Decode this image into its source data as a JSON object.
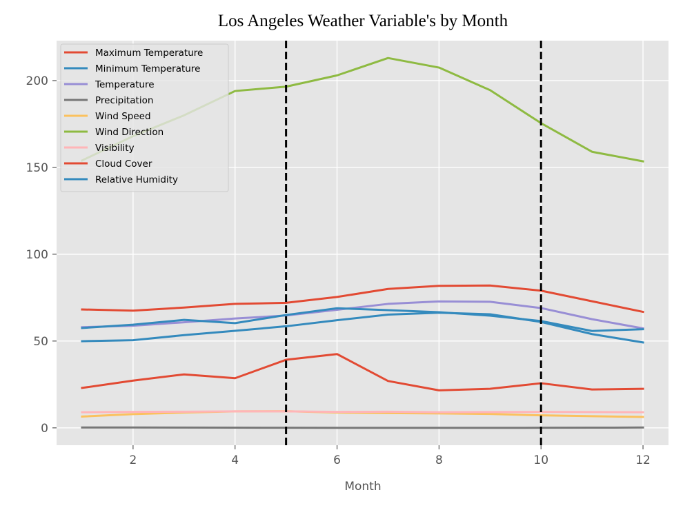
{
  "chart_data": {
    "type": "line",
    "title": "Los Angeles Weather Variable's by Month",
    "xlabel": "Month",
    "ylabel": "",
    "xlim": [
      0.5,
      12.5
    ],
    "ylim": [
      -10,
      223
    ],
    "xticks": [
      2,
      4,
      6,
      8,
      10,
      12
    ],
    "yticks": [
      0,
      50,
      100,
      150,
      200
    ],
    "grid": true,
    "legend_position": "top-left",
    "vlines": [
      5,
      10
    ],
    "x": [
      1,
      2,
      3,
      4,
      5,
      6,
      7,
      8,
      9,
      10,
      11,
      12
    ],
    "series": [
      {
        "name": "Maximum Temperature",
        "color": "#E24A33",
        "values": [
          68.2,
          67.5,
          69.3,
          71.4,
          72.0,
          75.4,
          80.0,
          81.8,
          82.0,
          79.0,
          72.9,
          66.8
        ]
      },
      {
        "name": "Minimum Temperature",
        "color": "#348ABD",
        "values": [
          49.9,
          50.5,
          53.4,
          55.9,
          58.5,
          62.0,
          65.2,
          66.3,
          65.4,
          61.0,
          54.0,
          49.2
        ]
      },
      {
        "name": "Temperature",
        "color": "#988ED5",
        "values": [
          58.0,
          58.8,
          60.8,
          63.0,
          64.7,
          68.0,
          71.4,
          72.8,
          72.6,
          69.0,
          62.6,
          57.3
        ]
      },
      {
        "name": "Precipitation",
        "color": "#777777",
        "values": [
          0.2,
          0.2,
          0.15,
          0.1,
          0.05,
          0.02,
          0.01,
          0.01,
          0.03,
          0.05,
          0.1,
          0.2
        ]
      },
      {
        "name": "Wind Speed",
        "color": "#FBC15E",
        "values": [
          6.5,
          7.9,
          8.8,
          9.5,
          9.6,
          8.8,
          8.5,
          8.3,
          8.0,
          7.2,
          6.7,
          6.3
        ]
      },
      {
        "name": "Wind Direction",
        "color": "#8EBA42",
        "values": [
          154.0,
          168.0,
          180.0,
          194.0,
          196.5,
          203.0,
          213.0,
          207.5,
          194.5,
          175.5,
          159.0,
          153.5
        ]
      },
      {
        "name": "Visibility",
        "color": "#FFB5B8",
        "values": [
          9.0,
          9.2,
          9.3,
          9.5,
          9.5,
          9.2,
          9.3,
          9.0,
          9.1,
          9.2,
          9.1,
          9.0
        ]
      },
      {
        "name": "Cloud Cover",
        "color": "#E24A33",
        "values": [
          23.0,
          27.2,
          30.8,
          28.6,
          39.2,
          42.5,
          27.0,
          21.6,
          22.5,
          25.7,
          22.1,
          22.5
        ]
      },
      {
        "name": "Relative Humidity",
        "color": "#348ABD",
        "values": [
          57.5,
          59.4,
          62.2,
          60.3,
          65.0,
          68.9,
          67.8,
          66.6,
          64.6,
          61.5,
          55.8,
          56.8
        ]
      }
    ]
  }
}
